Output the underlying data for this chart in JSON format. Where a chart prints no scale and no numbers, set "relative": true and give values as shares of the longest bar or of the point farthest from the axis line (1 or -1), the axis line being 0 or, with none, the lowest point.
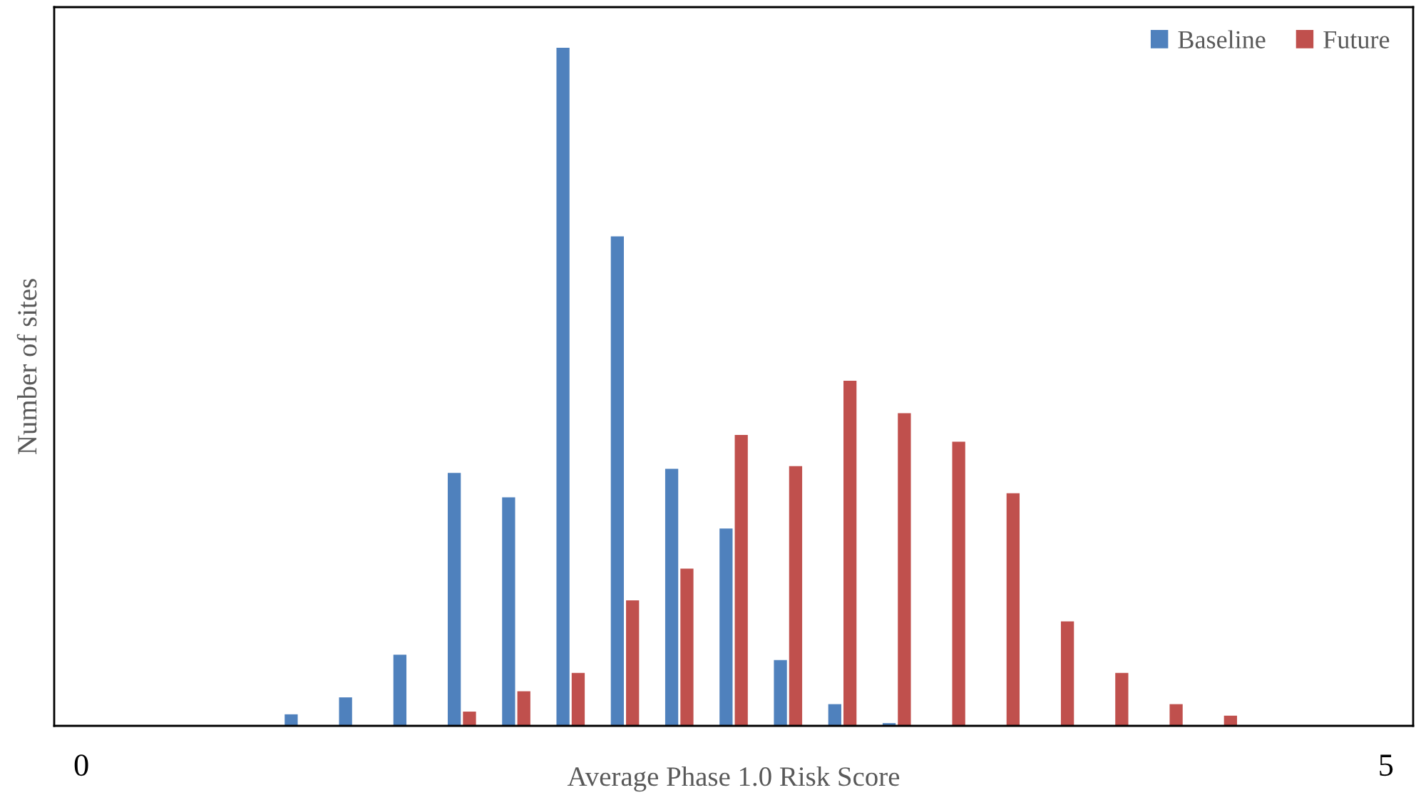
{
  "chart_data": {
    "type": "bar",
    "relative": true,
    "xlabel": "Average Phase 1.0 Risk Score",
    "ylabel": "Number of sites",
    "categories": [
      "0",
      null,
      null,
      null,
      null,
      null,
      null,
      null,
      null,
      null,
      null,
      null,
      null,
      null,
      null,
      null,
      null,
      null,
      null,
      null,
      null,
      null,
      null,
      null,
      "5"
    ],
    "series": [
      {
        "name": "Baseline",
        "color": "#4f81bd",
        "values": [
          0,
          0,
          0,
          0,
          0.017,
          0.042,
          0.105,
          0.373,
          0.337,
          1.0,
          0.722,
          0.379,
          0.291,
          0.097,
          0.032,
          0.004,
          0,
          0,
          0,
          0,
          0,
          0,
          0,
          0,
          0
        ]
      },
      {
        "name": "Future",
        "color": "#c0504d",
        "values": [
          0,
          0,
          0,
          0,
          0,
          0,
          0,
          0.021,
          0.051,
          0.078,
          0.185,
          0.232,
          0.429,
          0.383,
          0.509,
          0.461,
          0.419,
          0.343,
          0.154,
          0.078,
          0.032,
          0.015,
          0,
          0,
          0
        ]
      }
    ],
    "legend": "top right",
    "grid": false
  }
}
